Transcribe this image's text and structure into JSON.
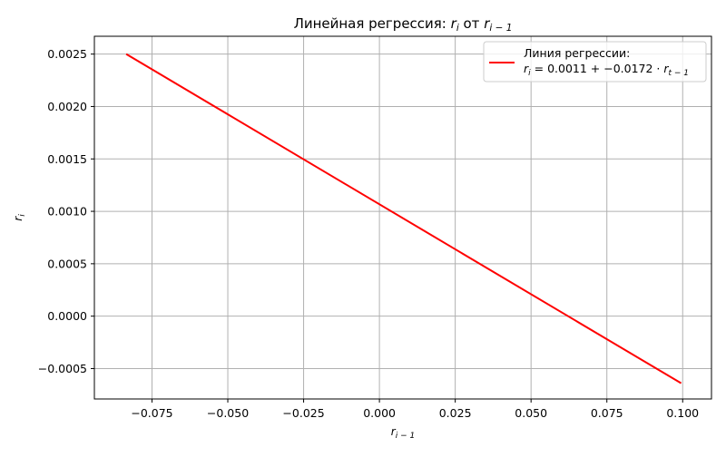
{
  "chart_data": {
    "type": "line",
    "title": {
      "main": "Линейная регрессия: ",
      "y_var": "r",
      "y_sub": "i",
      "mid": " от ",
      "x_var": "r",
      "x_sub": "i − 1"
    },
    "xlabel": {
      "var": "r",
      "sub": "i − 1"
    },
    "ylabel": {
      "var": "r",
      "sub": "i"
    },
    "xlim": [
      -0.094,
      0.1095
    ],
    "ylim": [
      -0.00079,
      0.00267
    ],
    "x_ticks": [
      "−0.075",
      "−0.050",
      "−0.025",
      "0.000",
      "0.025",
      "0.050",
      "0.075",
      "0.100"
    ],
    "x_tick_values": [
      -0.075,
      -0.05,
      -0.025,
      0.0,
      0.025,
      0.05,
      0.075,
      0.1
    ],
    "y_ticks": [
      "−0.0005",
      "0.0000",
      "0.0005",
      "0.0010",
      "0.0015",
      "0.0020",
      "0.0025"
    ],
    "y_tick_values": [
      -0.0005,
      0.0,
      0.0005,
      0.001,
      0.0015,
      0.002,
      0.0025
    ],
    "grid": true,
    "legend_position": "top-right",
    "series": [
      {
        "name": "Линия регрессии:",
        "formula": {
          "y_var": "r",
          "y_sub": "i",
          "rhs": " = 0.0011 + −0.0172 · ",
          "x_var": "r",
          "x_sub": "t − 1"
        },
        "color": "#ff0000",
        "x": [
          -0.0835,
          0.0995
        ],
        "y": [
          0.0025,
          -0.00064
        ]
      }
    ]
  }
}
